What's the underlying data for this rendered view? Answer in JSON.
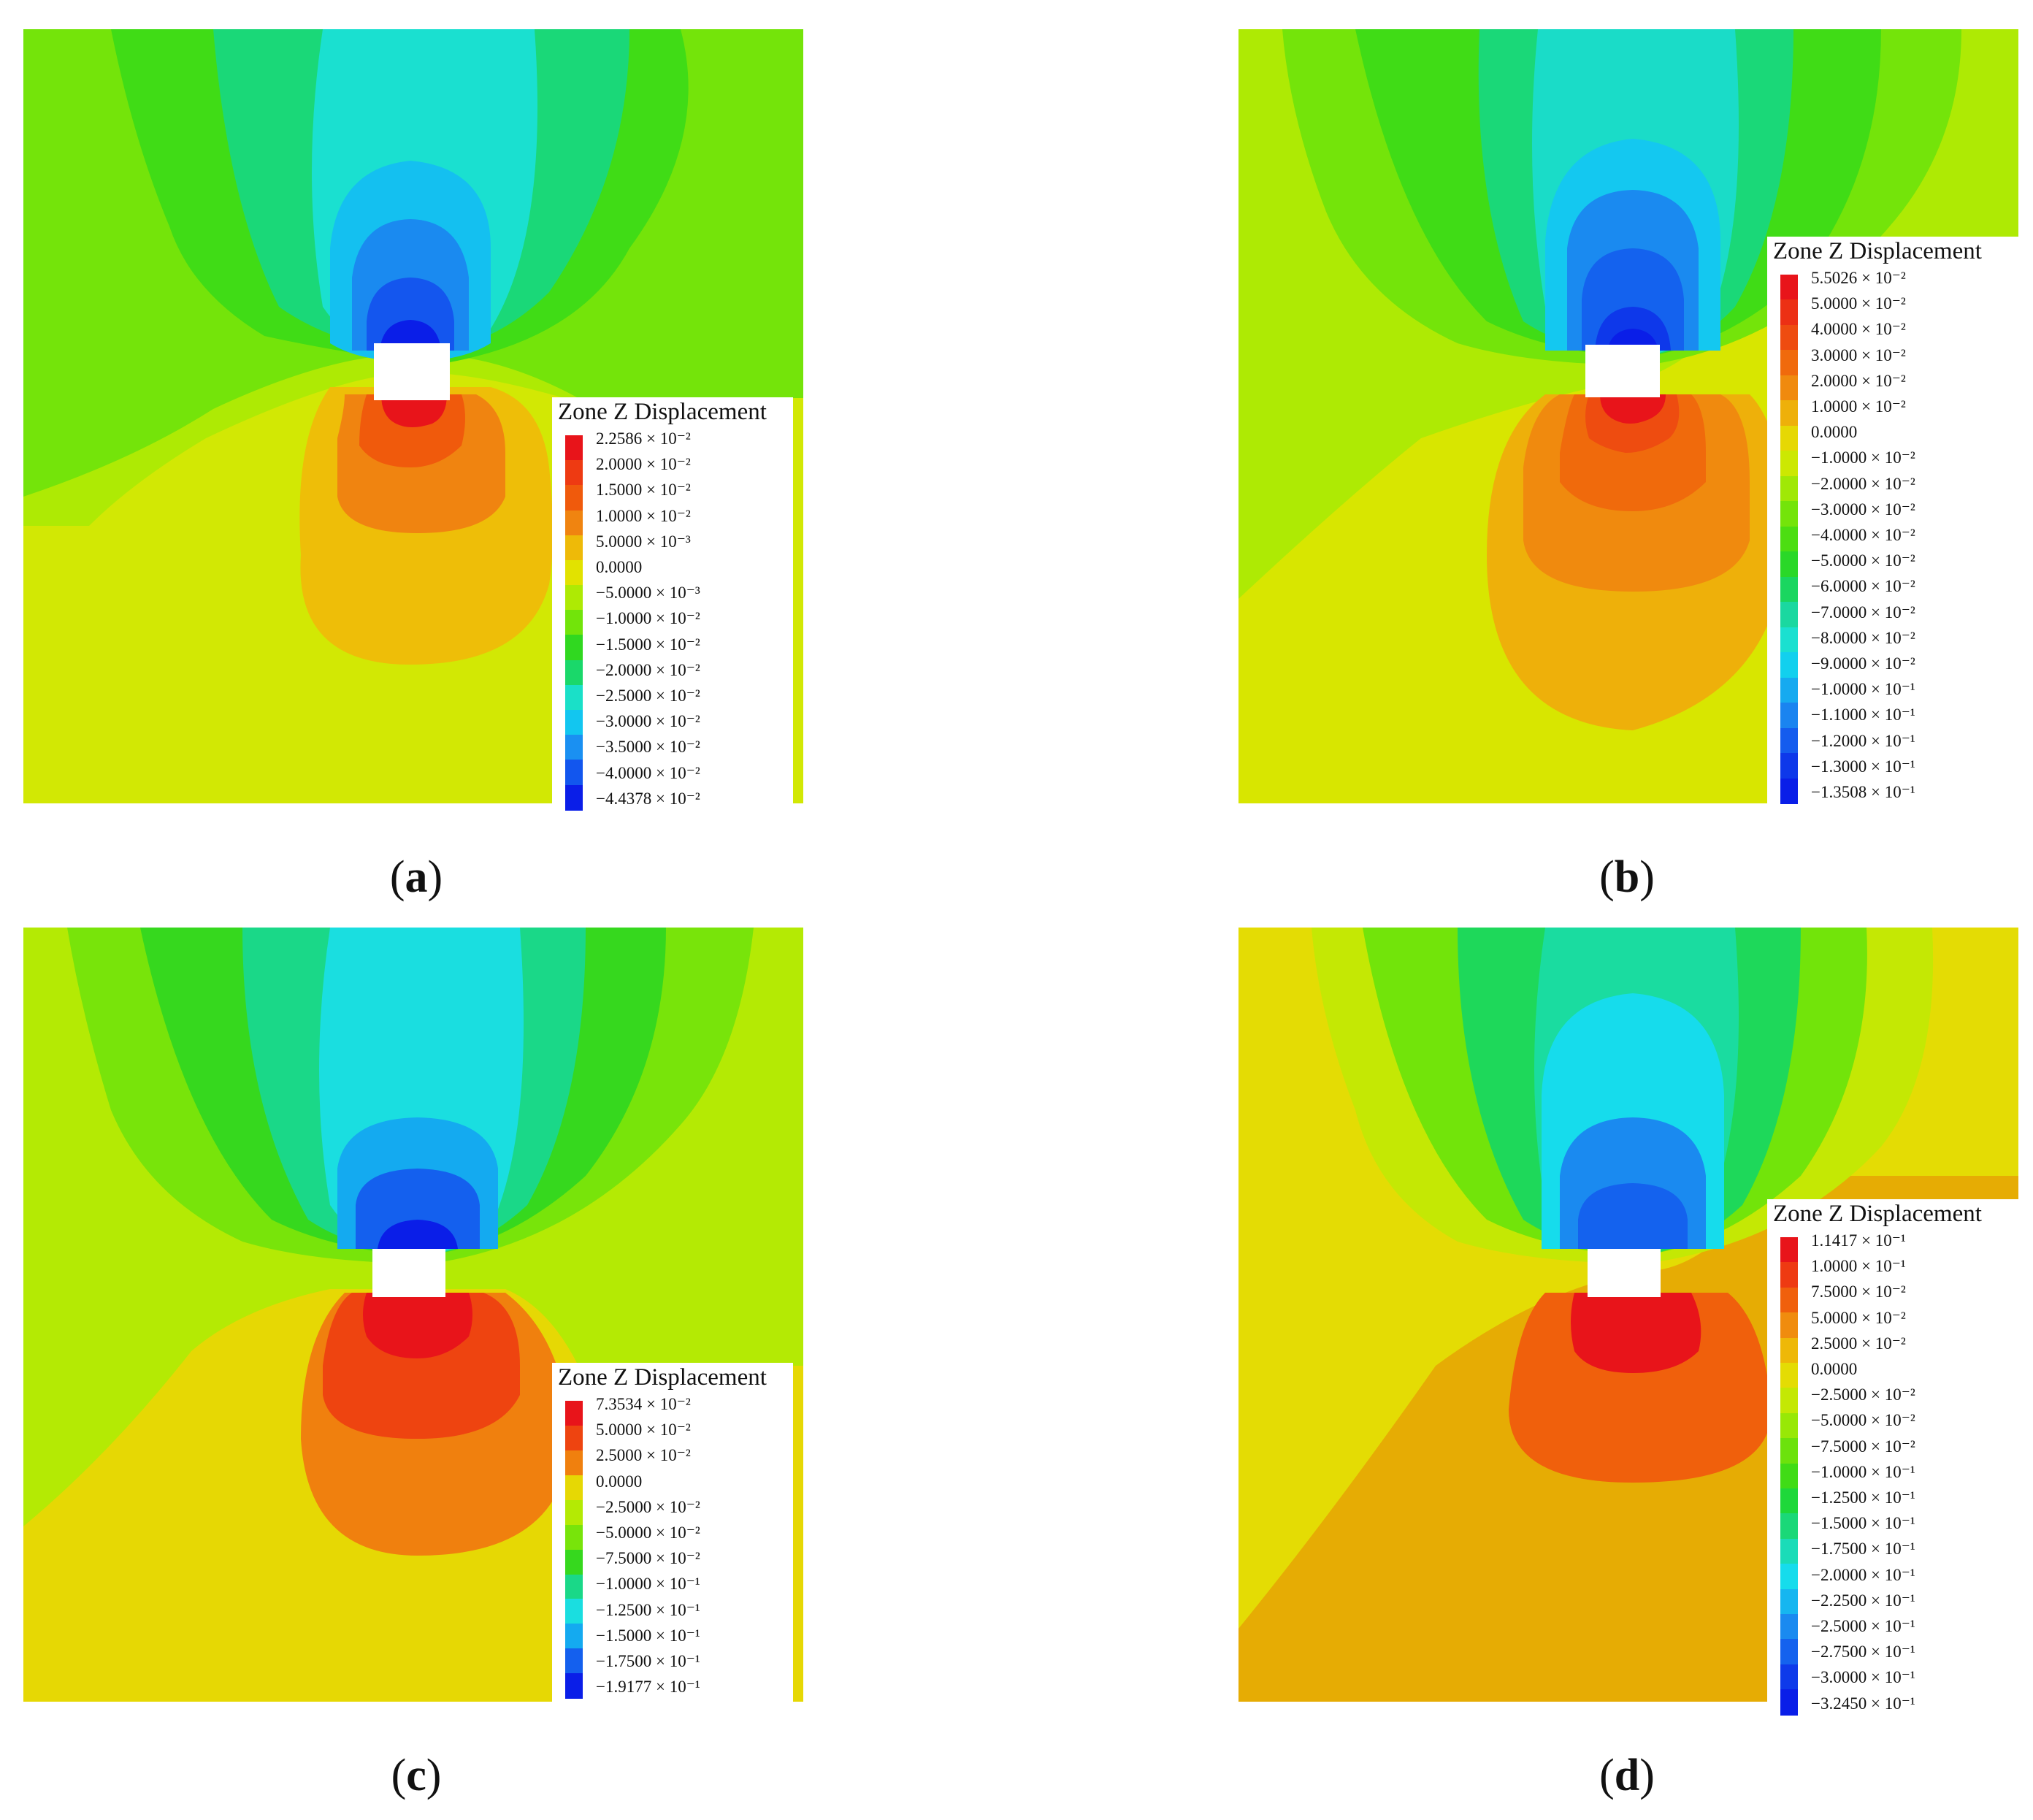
{
  "panels": [
    {
      "caption_letter": "a",
      "legend": {
        "title": "Zone Z Displacement",
        "labels": [
          "2.2586 × 10⁻²",
          "2.0000 × 10⁻²",
          "1.5000 × 10⁻²",
          "1.0000 × 10⁻²",
          "5.0000 × 10⁻³",
          "0.0000",
          "−5.0000 × 10⁻³",
          "−1.0000 × 10⁻²",
          "−1.5000 × 10⁻²",
          "−2.0000 × 10⁻²",
          "−2.5000 × 10⁻²",
          "−3.0000 × 10⁻²",
          "−3.5000 × 10⁻²",
          "−4.0000 × 10⁻²",
          "−4.4378 × 10⁻²"
        ],
        "colors": [
          "#e8141a",
          "#ee3a12",
          "#f05a0c",
          "#f08410",
          "#eeba08",
          "#e2e200",
          "#aeea04",
          "#72e40a",
          "#30d820",
          "#1ad86a",
          "#1ae0c8",
          "#12c6f0",
          "#1a90f2",
          "#1256ee",
          "#0a1ee8"
        ]
      }
    },
    {
      "caption_letter": "b",
      "legend": {
        "title": "Zone Z Displacement",
        "labels": [
          "5.5026 × 10⁻²",
          "5.0000 × 10⁻²",
          "4.0000 × 10⁻²",
          "3.0000 × 10⁻²",
          "2.0000 × 10⁻²",
          "1.0000 × 10⁻²",
          "0.0000",
          "−1.0000 × 10⁻²",
          "−2.0000 × 10⁻²",
          "−3.0000 × 10⁻²",
          "−4.0000 × 10⁻²",
          "−5.0000 × 10⁻²",
          "−6.0000 × 10⁻²",
          "−7.0000 × 10⁻²",
          "−8.0000 × 10⁻²",
          "−9.0000 × 10⁻²",
          "−1.0000 × 10⁻¹",
          "−1.1000 × 10⁻¹",
          "−1.2000 × 10⁻¹",
          "−1.3000 × 10⁻¹",
          "−1.3508 × 10⁻¹"
        ],
        "colors": [
          "#e8141a",
          "#ec3014",
          "#ee4c10",
          "#f06a0c",
          "#f08a0e",
          "#eeb00a",
          "#e6d804",
          "#cce802",
          "#a0e806",
          "#74e40a",
          "#4cde12",
          "#2ad828",
          "#1ad660",
          "#1ad8a0",
          "#1ae0d0",
          "#12d0ee",
          "#16aaf0",
          "#1a84f0",
          "#145cee",
          "#0e38ea",
          "#0a1ee8"
        ]
      }
    },
    {
      "caption_letter": "c",
      "legend": {
        "title": "Zone Z Displacement",
        "labels": [
          "7.3534 × 10⁻²",
          "5.0000 × 10⁻²",
          "2.5000 × 10⁻²",
          "0.0000",
          "−2.5000 × 10⁻²",
          "−5.0000 × 10⁻²",
          "−7.5000 × 10⁻²",
          "−1.0000 × 10⁻¹",
          "−1.2500 × 10⁻¹",
          "−1.5000 × 10⁻¹",
          "−1.7500 × 10⁻¹",
          "−1.9177 × 10⁻¹"
        ],
        "colors": [
          "#e8141a",
          "#ee4410",
          "#f0800e",
          "#e6d804",
          "#b4ea04",
          "#78e40a",
          "#36d81e",
          "#1ad888",
          "#1adee0",
          "#14aaf0",
          "#1460ee",
          "#0a1ee8"
        ]
      }
    },
    {
      "caption_letter": "d",
      "legend": {
        "title": "Zone Z Displacement",
        "labels": [
          "1.1417 × 10⁻¹",
          "1.0000 × 10⁻¹",
          "7.5000 × 10⁻²",
          "5.0000 × 10⁻²",
          "2.5000 × 10⁻²",
          "0.0000",
          "−2.5000 × 10⁻²",
          "−5.0000 × 10⁻²",
          "−7.5000 × 10⁻²",
          "−1.0000 × 10⁻¹",
          "−1.2500 × 10⁻¹",
          "−1.5000 × 10⁻¹",
          "−1.7500 × 10⁻¹",
          "−2.0000 × 10⁻¹",
          "−2.2500 × 10⁻¹",
          "−2.5000 × 10⁻¹",
          "−2.7500 × 10⁻¹",
          "−3.0000 × 10⁻¹",
          "−3.2450 × 10⁻¹"
        ],
        "colors": [
          "#e8141a",
          "#ee3a12",
          "#f0600c",
          "#f08c0e",
          "#eeb808",
          "#e4dc04",
          "#c4e804",
          "#98e806",
          "#6ce20c",
          "#40dc16",
          "#1ed83a",
          "#1ad878",
          "#1adcb8",
          "#16dcec",
          "#16b6f0",
          "#1a8af0",
          "#1462ee",
          "#0e3aea",
          "#0a1ee8"
        ]
      }
    }
  ]
}
